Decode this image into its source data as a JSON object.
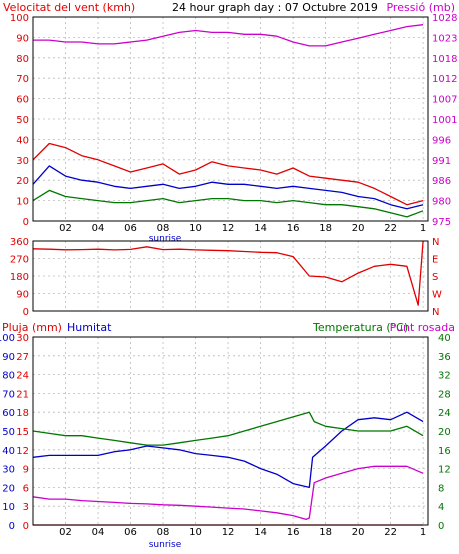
{
  "colors": {
    "wind_text": "#e00000",
    "pressure_text": "#cc00cc",
    "humidity_text": "#0000cc",
    "temp_text": "#007700",
    "title_text": "#000000",
    "grid": "#bbbbbb"
  },
  "header": {
    "wind_title": "Velocitat del vent (kmh)",
    "graph_title": "24 hour graph day : 07 Octubre 2019",
    "pressure_title": "Pressió (mb)"
  },
  "bottom_header": {
    "rain_title": "Pluja (mm)",
    "humidity_title": "Humitat",
    "temp_title": "Temperatura (°C)",
    "dew_title": "Punt rosada"
  },
  "sunrise_label": "sunrise",
  "chart_data": [
    {
      "type": "line",
      "panel": "wind_pressure",
      "x_ticks": [
        "02",
        "04",
        "06",
        "08",
        "10",
        "12",
        "14",
        "16",
        "18",
        "20",
        "22",
        "1"
      ],
      "y_left_ticks": [
        0,
        10,
        20,
        30,
        40,
        50,
        60,
        70,
        80,
        90,
        100
      ],
      "y_left_range": [
        0,
        100
      ],
      "y_right_ticks": [
        975,
        980,
        986,
        991,
        996,
        1001,
        1007,
        1012,
        1018,
        1023,
        1028
      ],
      "y_right_range": [
        975,
        1028
      ],
      "series": [
        {
          "role": "gust",
          "color": "#e00000",
          "x": [
            0,
            1,
            2,
            3,
            4,
            5,
            6,
            7,
            8,
            9,
            10,
            11,
            12,
            13,
            14,
            15,
            16,
            17,
            18,
            19,
            20,
            21,
            22,
            23,
            24
          ],
          "values": [
            30,
            38,
            36,
            32,
            30,
            27,
            24,
            26,
            28,
            23,
            25,
            29,
            27,
            26,
            25,
            23,
            26,
            22,
            21,
            20,
            19,
            16,
            12,
            8,
            10
          ]
        },
        {
          "role": "average",
          "color": "#0000cc",
          "x": [
            0,
            1,
            2,
            3,
            4,
            5,
            6,
            7,
            8,
            9,
            10,
            11,
            12,
            13,
            14,
            15,
            16,
            17,
            18,
            19,
            20,
            21,
            22,
            23,
            24
          ],
          "values": [
            18,
            27,
            22,
            20,
            19,
            17,
            16,
            17,
            18,
            16,
            17,
            19,
            18,
            18,
            17,
            16,
            17,
            16,
            15,
            14,
            12,
            11,
            8,
            6,
            8
          ]
        },
        {
          "role": "minimum",
          "color": "#007700",
          "x": [
            0,
            1,
            2,
            3,
            4,
            5,
            6,
            7,
            8,
            9,
            10,
            11,
            12,
            13,
            14,
            15,
            16,
            17,
            18,
            19,
            20,
            21,
            22,
            23,
            24
          ],
          "values": [
            10,
            15,
            12,
            11,
            10,
            9,
            9,
            10,
            11,
            9,
            10,
            11,
            11,
            10,
            10,
            9,
            10,
            9,
            8,
            8,
            7,
            6,
            4,
            2,
            5
          ]
        },
        {
          "role": "pressure",
          "axis": "right",
          "color": "#cc00cc",
          "x": [
            0,
            1,
            2,
            3,
            4,
            5,
            6,
            7,
            8,
            9,
            10,
            11,
            12,
            13,
            14,
            15,
            16,
            17,
            18,
            19,
            20,
            21,
            22,
            23,
            24
          ],
          "values": [
            1022,
            1022,
            1021.5,
            1021.5,
            1021,
            1021,
            1021.5,
            1022,
            1023,
            1024,
            1024.5,
            1024,
            1024,
            1023.5,
            1023.5,
            1023,
            1021.5,
            1020.5,
            1020.5,
            1021.5,
            1022.5,
            1023.5,
            1024.5,
            1025.5,
            1026
          ]
        }
      ]
    },
    {
      "type": "line",
      "panel": "wind_direction",
      "x_ticks": [
        "02",
        "04",
        "06",
        "08",
        "10",
        "12",
        "14",
        "16",
        "18",
        "20",
        "22",
        "1"
      ],
      "y_left_ticks": [
        0,
        90,
        180,
        270,
        360
      ],
      "y_left_range": [
        0,
        360
      ],
      "y_right_ticks": [
        "N",
        "W",
        "S",
        "E",
        "N"
      ],
      "series": [
        {
          "role": "direction",
          "color": "#e00000",
          "x": [
            0,
            1,
            2,
            3,
            4,
            5,
            6,
            7,
            8,
            9,
            10,
            11,
            12,
            13,
            14,
            15,
            16,
            17,
            18,
            19,
            20,
            21,
            22,
            23,
            23.7,
            24
          ],
          "values": [
            320,
            318,
            315,
            316,
            318,
            314,
            317,
            330,
            316,
            318,
            314,
            312,
            310,
            306,
            302,
            300,
            280,
            180,
            175,
            150,
            195,
            230,
            240,
            230,
            30,
            360
          ]
        }
      ]
    },
    {
      "type": "line",
      "panel": "rain_humidity_temp",
      "x_ticks": [
        "02",
        "04",
        "06",
        "08",
        "10",
        "12",
        "14",
        "16",
        "18",
        "20",
        "22",
        "1"
      ],
      "y_left_rain_ticks": [
        0,
        3,
        6,
        9,
        12,
        15,
        18,
        21,
        24,
        27,
        30
      ],
      "y_left_humidity_ticks": [
        0,
        10,
        20,
        30,
        40,
        50,
        60,
        70,
        80,
        90,
        100
      ],
      "y_right_temp_ticks": [
        0,
        4,
        8,
        12,
        16,
        20,
        24,
        28,
        32,
        36,
        40
      ],
      "series": [
        {
          "role": "rain",
          "axis": "rain",
          "color": "#e00000",
          "x": [
            0,
            24
          ],
          "values": [
            0,
            0
          ]
        },
        {
          "role": "humidity",
          "axis": "humidity",
          "color": "#0000cc",
          "x": [
            0,
            1,
            2,
            3,
            4,
            5,
            6,
            7,
            8,
            9,
            10,
            11,
            12,
            13,
            14,
            15,
            16,
            17,
            17.2,
            18,
            19,
            20,
            21,
            22,
            23,
            24
          ],
          "values": [
            36,
            37,
            37,
            37,
            37,
            39,
            40,
            42,
            41,
            40,
            38,
            37,
            36,
            34,
            30,
            27,
            22,
            20,
            36,
            42,
            50,
            56,
            57,
            56,
            60,
            55
          ]
        },
        {
          "role": "temperature",
          "axis": "temp",
          "color": "#007700",
          "x": [
            0,
            1,
            2,
            3,
            4,
            5,
            6,
            7,
            8,
            9,
            10,
            11,
            12,
            13,
            14,
            15,
            16,
            17,
            17.3,
            18,
            19,
            20,
            21,
            22,
            23,
            24
          ],
          "values": [
            20,
            19.5,
            19,
            19,
            18.5,
            18,
            17.5,
            17,
            17,
            17.5,
            18,
            18.5,
            19,
            20,
            21,
            22,
            23,
            24,
            22,
            21,
            20.5,
            20,
            20,
            20,
            21,
            19
          ]
        },
        {
          "role": "dew_point",
          "axis": "temp",
          "color": "#cc00cc",
          "x": [
            0,
            1,
            2,
            3,
            4,
            5,
            6,
            7,
            8,
            9,
            10,
            11,
            12,
            13,
            14,
            15,
            16,
            16.8,
            17,
            17.3,
            18,
            19,
            20,
            21,
            22,
            23,
            24
          ],
          "values": [
            6,
            5.5,
            5.5,
            5.2,
            5,
            4.8,
            4.6,
            4.5,
            4.3,
            4.2,
            4,
            3.8,
            3.6,
            3.4,
            3,
            2.6,
            2,
            1.2,
            1.5,
            9,
            10,
            11,
            12,
            12.5,
            12.5,
            12.5,
            11
          ]
        }
      ]
    }
  ]
}
